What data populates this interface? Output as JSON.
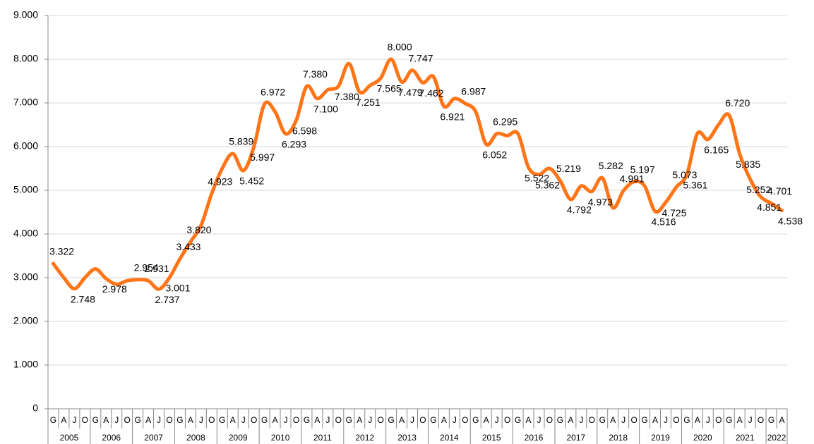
{
  "chart_data": {
    "type": "line",
    "categories": [
      "G",
      "A",
      "J",
      "O",
      "G",
      "A",
      "J",
      "O",
      "G",
      "A",
      "J",
      "O",
      "G",
      "A",
      "J",
      "O",
      "G",
      "A",
      "J",
      "O",
      "G",
      "A",
      "J",
      "O",
      "G",
      "A",
      "J",
      "O",
      "G",
      "A",
      "J",
      "O",
      "G",
      "A",
      "J",
      "O",
      "G",
      "A",
      "J",
      "O",
      "G",
      "A",
      "J",
      "O",
      "G",
      "A",
      "J",
      "O",
      "G",
      "A",
      "J",
      "O",
      "G",
      "A",
      "J",
      "O",
      "G",
      "A",
      "J",
      "O",
      "G",
      "A",
      "J",
      "O",
      "G",
      "A",
      "J",
      "O",
      "G",
      "A"
    ],
    "years": [
      "2005",
      "2006",
      "2007",
      "2008",
      "2009",
      "2010",
      "2011",
      "2012",
      "2013",
      "2014",
      "2015",
      "2016",
      "2017",
      "2018",
      "2019",
      "2020",
      "2021",
      "2022"
    ],
    "series": [
      {
        "color": "#ff7518",
        "values": [
          3322,
          3000,
          2748,
          3000,
          3200,
          2978,
          2850,
          2930,
          2954,
          2931,
          2737,
          3001,
          3433,
          3820,
          4200,
          4923,
          5500,
          5839,
          5452,
          5997,
          6972,
          6800,
          6293,
          6598,
          7380,
          7100,
          7300,
          7380,
          7900,
          7251,
          7400,
          7565,
          8000,
          7479,
          7747,
          7462,
          7600,
          6921,
          7100,
          6987,
          6800,
          6052,
          6295,
          6250,
          6300,
          5522,
          5362,
          5500,
          5219,
          4792,
          5100,
          4973,
          5282,
          4600,
          4991,
          5197,
          5100,
          4516,
          4725,
          5073,
          5361,
          6300,
          6165,
          6500,
          6720,
          5835,
          5252,
          4851,
          4701,
          4538
        ],
        "value_labels": [
          "3.322",
          null,
          "2.748",
          null,
          null,
          "2.978",
          null,
          null,
          "2.954",
          "2.931",
          "2.737",
          "3.001",
          "3.433",
          "3.820",
          null,
          "4.923",
          null,
          "5.839",
          "5.452",
          "5.997",
          "6.972",
          null,
          "6.293",
          "6.598",
          "7.380",
          "7.100",
          null,
          "7.380",
          null,
          "7.251",
          null,
          "7.565",
          "8.000",
          "7.479",
          "7.747",
          "7.462",
          null,
          "6.921",
          null,
          "6.987",
          null,
          "6.052",
          "6.295",
          null,
          null,
          "5.522",
          "5.362",
          null,
          "5.219",
          "4.792",
          null,
          "4.973",
          "5.282",
          null,
          "4.991",
          "5.197",
          null,
          "4.516",
          "4.725",
          "5.073",
          "5.361",
          null,
          "6.165",
          null,
          "6.720",
          "5.835",
          "5.252",
          "4.851",
          "4.701",
          "4.538"
        ]
      }
    ],
    "ylim": [
      0,
      9000
    ],
    "yticks": [
      0,
      {
        "value": 1000,
        "label": "1.000"
      },
      {
        "value": 2000,
        "label": "2.000"
      },
      {
        "value": 3000,
        "label": "3.000"
      },
      {
        "value": 4000,
        "label": "4.000"
      },
      {
        "value": 5000,
        "label": "5.000"
      },
      {
        "value": 6000,
        "label": "6.000"
      },
      {
        "value": 7000,
        "label": "7.000"
      },
      {
        "value": 8000,
        "label": "8.000"
      },
      {
        "value": 9000,
        "label": "9.000"
      }
    ],
    "grid": true
  }
}
